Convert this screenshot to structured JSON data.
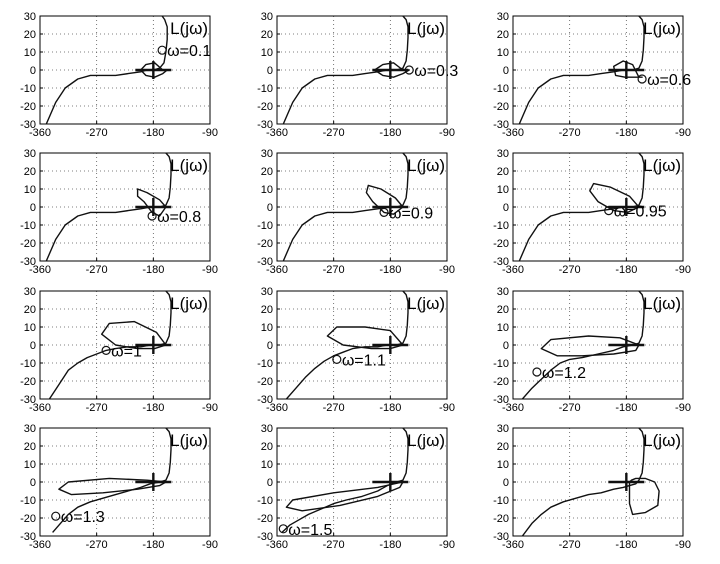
{
  "figure": {
    "panel_label": "L(jω)",
    "x_ticks": [
      "-360",
      "-270",
      "-180",
      "-90"
    ],
    "y_ticks": [
      "30",
      "20",
      "10",
      "0",
      "-10",
      "-20",
      "-30"
    ],
    "colors": {
      "curve": "#111111",
      "grid": "#555555",
      "frame": "#000000",
      "background": "#ffffff"
    }
  },
  "chart_data": [
    {
      "type": "line",
      "omega_label": "ω=0.1",
      "xlim": [
        -360,
        -90
      ],
      "ylim": [
        -30,
        30
      ],
      "grid": true,
      "x_ticks": [
        -360,
        -270,
        -180,
        -90
      ],
      "y_ticks": [
        -30,
        -20,
        -10,
        0,
        10,
        20,
        30
      ],
      "series": [
        {
          "x": [
            -350,
            -335,
            -320,
            -300,
            -280,
            -260,
            -240,
            -220,
            -200,
            -190,
            -180,
            -170,
            -163,
            -160,
            -158,
            -158,
            -162,
            -166
          ],
          "y": [
            -30,
            -18,
            -10,
            -5,
            -3,
            -3,
            -3,
            -2,
            -1,
            0,
            0,
            1,
            4,
            10,
            17,
            24,
            28,
            30
          ]
        },
        {
          "x": [
            -165,
            -178,
            -192,
            -200,
            -192,
            -178,
            -165,
            -158,
            -165
          ],
          "y": [
            0,
            4,
            3,
            0,
            -3,
            -4,
            -2,
            0,
            0
          ]
        }
      ],
      "marker": {
        "x": -166,
        "y": 11
      },
      "label_position": "right"
    },
    {
      "type": "line",
      "omega_label": "ω=0.3",
      "xlim": [
        -360,
        -90
      ],
      "ylim": [
        -30,
        30
      ],
      "grid": true,
      "x_ticks": [
        -360,
        -270,
        -180,
        -90
      ],
      "y_ticks": [
        -30,
        -20,
        -10,
        0,
        10,
        20,
        30
      ],
      "series": [
        {
          "x": [
            -350,
            -335,
            -320,
            -300,
            -280,
            -260,
            -240,
            -220,
            -200,
            -185,
            -170,
            -160,
            -155,
            -153,
            -152,
            -152,
            -155,
            -160
          ],
          "y": [
            -30,
            -18,
            -10,
            -5,
            -3,
            -3,
            -3,
            -2,
            -1,
            0,
            0,
            1,
            5,
            11,
            18,
            24,
            28,
            30
          ]
        },
        {
          "x": [
            -160,
            -175,
            -192,
            -205,
            -192,
            -175,
            -160,
            -150,
            -160
          ],
          "y": [
            0,
            4,
            3,
            0,
            -3,
            -4,
            -2,
            0,
            0
          ]
        }
      ],
      "marker": {
        "x": -150,
        "y": 0
      },
      "label_position": "right"
    },
    {
      "type": "line",
      "omega_label": "ω=0.6",
      "xlim": [
        -360,
        -90
      ],
      "ylim": [
        -30,
        30
      ],
      "grid": true,
      "x_ticks": [
        -360,
        -270,
        -180,
        -90
      ],
      "y_ticks": [
        -30,
        -20,
        -10,
        0,
        10,
        20,
        30
      ],
      "series": [
        {
          "x": [
            -350,
            -335,
            -320,
            -300,
            -280,
            -260,
            -240,
            -220,
            -200,
            -185,
            -170,
            -160,
            -155,
            -153,
            -152,
            -152,
            -155,
            -160
          ],
          "y": [
            -30,
            -18,
            -10,
            -5,
            -3,
            -3,
            -3,
            -2,
            -1,
            0,
            0,
            1,
            5,
            11,
            18,
            24,
            28,
            30
          ]
        },
        {
          "x": [
            -160,
            -170,
            -185,
            -200,
            -197,
            -182,
            -165,
            -155,
            -160
          ],
          "y": [
            -4,
            3,
            5,
            2,
            -3,
            -4,
            -4,
            -4,
            -4
          ]
        }
      ],
      "marker": {
        "x": -155,
        "y": -5
      },
      "label_position": "right"
    },
    {
      "type": "line",
      "omega_label": "ω=0.8",
      "xlim": [
        -360,
        -90
      ],
      "ylim": [
        -30,
        30
      ],
      "grid": true,
      "x_ticks": [
        -360,
        -270,
        -180,
        -90
      ],
      "y_ticks": [
        -30,
        -20,
        -10,
        0,
        10,
        20,
        30
      ],
      "series": [
        {
          "x": [
            -350,
            -335,
            -320,
            -300,
            -280,
            -260,
            -240,
            -220,
            -200,
            -185,
            -170,
            -160,
            -155,
            -153,
            -152,
            -152,
            -155,
            -160
          ],
          "y": [
            -30,
            -18,
            -10,
            -5,
            -3,
            -3,
            -3,
            -2,
            -1,
            0,
            0,
            1,
            5,
            11,
            18,
            24,
            28,
            30
          ]
        },
        {
          "x": [
            -160,
            -170,
            -190,
            -205,
            -205,
            -195,
            -182,
            -170,
            -160
          ],
          "y": [
            0,
            4,
            8,
            10,
            6,
            3,
            -3,
            -5,
            0
          ]
        }
      ],
      "marker": {
        "x": -182,
        "y": -5
      },
      "label_position": "right"
    },
    {
      "type": "line",
      "omega_label": "ω=0.9",
      "xlim": [
        -360,
        -90
      ],
      "ylim": [
        -30,
        30
      ],
      "grid": true,
      "x_ticks": [
        -360,
        -270,
        -180,
        -90
      ],
      "y_ticks": [
        -30,
        -20,
        -10,
        0,
        10,
        20,
        30
      ],
      "series": [
        {
          "x": [
            -350,
            -335,
            -320,
            -300,
            -280,
            -260,
            -240,
            -220,
            -200,
            -185,
            -170,
            -160,
            -155,
            -153,
            -152,
            -152,
            -155,
            -160
          ],
          "y": [
            -30,
            -18,
            -10,
            -5,
            -3,
            -3,
            -3,
            -2,
            -1,
            0,
            0,
            1,
            5,
            11,
            18,
            24,
            28,
            30
          ]
        },
        {
          "x": [
            -160,
            -172,
            -195,
            -215,
            -218,
            -208,
            -190,
            -175,
            -160
          ],
          "y": [
            0,
            5,
            10,
            12,
            8,
            3,
            -3,
            -4,
            0
          ]
        }
      ],
      "marker": {
        "x": -190,
        "y": -3
      },
      "label_position": "right"
    },
    {
      "type": "line",
      "omega_label": "ω=0.95",
      "xlim": [
        -360,
        -90
      ],
      "ylim": [
        -30,
        30
      ],
      "grid": true,
      "x_ticks": [
        -360,
        -270,
        -180,
        -90
      ],
      "y_ticks": [
        -30,
        -20,
        -10,
        0,
        10,
        20,
        30
      ],
      "series": [
        {
          "x": [
            -350,
            -335,
            -320,
            -300,
            -280,
            -260,
            -240,
            -220,
            -200,
            -185,
            -170,
            -160,
            -155,
            -153,
            -152,
            -152,
            -155,
            -160
          ],
          "y": [
            -30,
            -18,
            -10,
            -5,
            -3,
            -3,
            -3,
            -2,
            -1,
            0,
            0,
            1,
            5,
            11,
            18,
            24,
            28,
            30
          ]
        },
        {
          "x": [
            -160,
            -175,
            -205,
            -232,
            -238,
            -225,
            -200,
            -178,
            -160
          ],
          "y": [
            0,
            6,
            11,
            13,
            9,
            3,
            -2,
            -3,
            0
          ]
        }
      ],
      "marker": {
        "x": -208,
        "y": -2
      },
      "label_position": "right"
    },
    {
      "type": "line",
      "omega_label": "ω=1",
      "xlim": [
        -360,
        -90
      ],
      "ylim": [
        -30,
        30
      ],
      "grid": true,
      "x_ticks": [
        -360,
        -270,
        -180,
        -90
      ],
      "y_ticks": [
        -30,
        -20,
        -10,
        0,
        10,
        20,
        30
      ],
      "series": [
        {
          "x": [
            -345,
            -330,
            -315,
            -300,
            -285,
            -270,
            -255,
            -240,
            -220,
            -200,
            -185,
            -170,
            -160,
            -155,
            -153,
            -152,
            -152,
            -155,
            -160
          ],
          "y": [
            -30,
            -22,
            -14,
            -10,
            -7,
            -5,
            -3,
            -2,
            -1,
            -1,
            0,
            0,
            1,
            5,
            11,
            18,
            24,
            28,
            30
          ]
        },
        {
          "x": [
            -160,
            -175,
            -210,
            -250,
            -262,
            -240,
            -205,
            -178,
            -160
          ],
          "y": [
            0,
            7,
            13,
            12,
            6,
            0,
            -2,
            -2,
            0
          ]
        }
      ],
      "marker": {
        "x": -255,
        "y": -3
      },
      "label_position": "right"
    },
    {
      "type": "line",
      "omega_label": "ω=1.1",
      "xlim": [
        -360,
        -90
      ],
      "ylim": [
        -30,
        30
      ],
      "grid": true,
      "x_ticks": [
        -360,
        -270,
        -180,
        -90
      ],
      "y_ticks": [
        -30,
        -20,
        -10,
        0,
        10,
        20,
        30
      ],
      "series": [
        {
          "x": [
            -345,
            -330,
            -315,
            -300,
            -285,
            -270,
            -255,
            -240,
            -220,
            -200,
            -185,
            -170,
            -160,
            -155,
            -153,
            -152,
            -152,
            -155,
            -160
          ],
          "y": [
            -30,
            -24,
            -18,
            -13,
            -9,
            -6,
            -4,
            -2,
            -1,
            -1,
            0,
            0,
            1,
            5,
            11,
            18,
            24,
            28,
            30
          ]
        },
        {
          "x": [
            -160,
            -180,
            -220,
            -265,
            -280,
            -255,
            -210,
            -180,
            -160
          ],
          "y": [
            0,
            8,
            10,
            10,
            5,
            0,
            -2,
            -2,
            0
          ]
        }
      ],
      "marker": {
        "x": -265,
        "y": -8
      },
      "label_position": "right"
    },
    {
      "type": "line",
      "omega_label": "ω=1.2",
      "xlim": [
        -360,
        -90
      ],
      "ylim": [
        -30,
        30
      ],
      "grid": true,
      "x_ticks": [
        -360,
        -270,
        -180,
        -90
      ],
      "y_ticks": [
        -30,
        -20,
        -10,
        0,
        10,
        20,
        30
      ],
      "series": [
        {
          "x": [
            -345,
            -330,
            -315,
            -300,
            -285,
            -270,
            -250,
            -225,
            -200,
            -185,
            -170,
            -160,
            -155,
            -153,
            -152,
            -152,
            -155,
            -160
          ],
          "y": [
            -30,
            -24,
            -19,
            -14,
            -10,
            -8,
            -7,
            -5,
            -3,
            -1,
            0,
            1,
            5,
            11,
            18,
            24,
            28,
            30
          ]
        },
        {
          "x": [
            -160,
            -190,
            -240,
            -300,
            -315,
            -290,
            -250,
            -200,
            -165,
            -160
          ],
          "y": [
            0,
            4,
            5,
            3,
            -2,
            -6,
            -6,
            -5,
            -3,
            0
          ]
        }
      ],
      "marker": {
        "x": -322,
        "y": -15
      },
      "label_position": "right"
    },
    {
      "type": "line",
      "omega_label": "ω=1.3",
      "xlim": [
        -360,
        -90
      ],
      "ylim": [
        -30,
        30
      ],
      "grid": true,
      "x_ticks": [
        -360,
        -270,
        -180,
        -90
      ],
      "y_ticks": [
        -30,
        -20,
        -10,
        0,
        10,
        20,
        30
      ],
      "series": [
        {
          "x": [
            -340,
            -330,
            -315,
            -300,
            -280,
            -260,
            -240,
            -220,
            -200,
            -185,
            -170,
            -160,
            -155,
            -153,
            -152,
            -152,
            -155,
            -160
          ],
          "y": [
            -28,
            -24,
            -18,
            -14,
            -11,
            -9,
            -7,
            -5,
            -3,
            -1,
            0,
            1,
            5,
            11,
            18,
            24,
            28,
            30
          ]
        },
        {
          "x": [
            -160,
            -190,
            -250,
            -315,
            -330,
            -310,
            -260,
            -205,
            -170,
            -160
          ],
          "y": [
            0,
            1,
            2,
            0,
            -4,
            -7,
            -6,
            -4,
            -2,
            0
          ]
        }
      ],
      "marker": {
        "x": -335,
        "y": -19
      },
      "label_position": "right"
    },
    {
      "type": "line",
      "omega_label": "ω=1.5",
      "xlim": [
        -360,
        -90
      ],
      "ylim": [
        -30,
        30
      ],
      "grid": true,
      "x_ticks": [
        -360,
        -270,
        -180,
        -90
      ],
      "y_ticks": [
        -30,
        -20,
        -10,
        0,
        10,
        20,
        30
      ],
      "series": [
        {
          "x": [
            -352,
            -340,
            -325,
            -310,
            -290,
            -270,
            -250,
            -225,
            -200,
            -185,
            -170,
            -160,
            -155,
            -153,
            -152,
            -152,
            -155,
            -160
          ],
          "y": [
            -28,
            -24,
            -21,
            -18,
            -15,
            -12,
            -10,
            -8,
            -5,
            -2,
            0,
            1,
            5,
            11,
            18,
            24,
            28,
            30
          ]
        },
        {
          "x": [
            -160,
            -200,
            -270,
            -335,
            -345,
            -320,
            -260,
            -200,
            -165,
            -160
          ],
          "y": [
            0,
            -3,
            -6,
            -10,
            -14,
            -16,
            -13,
            -8,
            -3,
            0
          ]
        }
      ],
      "marker": {
        "x": -350,
        "y": -26
      },
      "label_position": "right"
    },
    {
      "type": "line",
      "omega_label": "",
      "xlim": [
        -360,
        -90
      ],
      "ylim": [
        -30,
        30
      ],
      "grid": true,
      "x_ticks": [
        -360,
        -270,
        -180,
        -90
      ],
      "y_ticks": [
        -30,
        -20,
        -10,
        0,
        10,
        20,
        30
      ],
      "series": [
        {
          "x": [
            -345,
            -330,
            -315,
            -300,
            -280,
            -260,
            -240,
            -220,
            -200,
            -185,
            -175,
            -165,
            -160,
            -155,
            -153,
            -152,
            -152,
            -155,
            -160
          ],
          "y": [
            -30,
            -23,
            -18,
            -14,
            -11,
            -9,
            -7,
            -6,
            -4,
            -3,
            -2,
            -1,
            1,
            5,
            11,
            18,
            24,
            28,
            30
          ]
        },
        {
          "x": [
            -175,
            -175,
            -170,
            -150,
            -130,
            -128,
            -135,
            -150,
            -165,
            -172,
            -175
          ],
          "y": [
            0,
            -12,
            -18,
            -17,
            -13,
            -5,
            0,
            2,
            2,
            1,
            0
          ]
        }
      ],
      "marker": null,
      "label_position": "right"
    }
  ]
}
